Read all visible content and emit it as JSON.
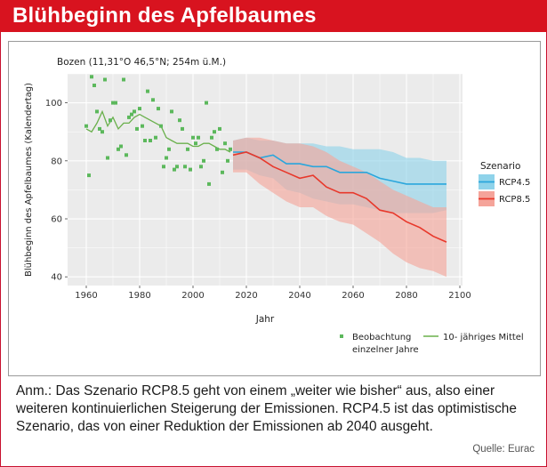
{
  "page": {
    "title": "Blühbeginn des Apfelbaumes",
    "note": "Anm.: Das Szenario RCP8.5 geht von einem „weiter wie bisher“ aus, also einer weiteren kontinuierlichen Steigerung der Emissionen. RCP4.5 ist das optimistische Szenario, das von einer Reduktion der Emissionen ab 2040 ausgeht.",
    "source": "Quelle: Eurac"
  },
  "colors": {
    "observation": "#5cb85c",
    "mean": "#6ab04c",
    "rcp45": "#2aa6dc",
    "rcp45_band": "#8fd3ea",
    "rcp85": "#e8382b",
    "rcp85_band": "#f5a49a",
    "panel": "#ebebeb",
    "brand": "#d8131f"
  },
  "chart_data": {
    "type": "line",
    "title": "Bozen (11,31°O 46,5°N; 254m ü.M.)",
    "xlabel": "Jahr",
    "ylabel": "Blühbeginn des Apfelbaumes (Kalendertag)",
    "xlim": [
      1953,
      2101
    ],
    "ylim": [
      37,
      110
    ],
    "xticks": [
      1960,
      1980,
      2000,
      2020,
      2040,
      2060,
      2080,
      2100
    ],
    "yticks": [
      40,
      60,
      80,
      100
    ],
    "grid": true,
    "legend_position": "right",
    "scenario_legend_title": "Szenario",
    "observations": {
      "name": "Beobachtung einzelner Jahre",
      "x": [
        1960,
        1961,
        1962,
        1963,
        1964,
        1965,
        1966,
        1967,
        1968,
        1969,
        1970,
        1971,
        1972,
        1973,
        1974,
        1975,
        1976,
        1977,
        1978,
        1979,
        1980,
        1981,
        1982,
        1983,
        1984,
        1985,
        1986,
        1987,
        1988,
        1989,
        1990,
        1991,
        1992,
        1993,
        1994,
        1995,
        1996,
        1997,
        1998,
        1999,
        2000,
        2001,
        2002,
        2003,
        2004,
        2005,
        2006,
        2007,
        2008,
        2009,
        2010,
        2011,
        2012,
        2013,
        2014
      ],
      "y": [
        92,
        75,
        109,
        106,
        97,
        91,
        90,
        108,
        81,
        94,
        100,
        100,
        84,
        85,
        108,
        82,
        95,
        96,
        97,
        91,
        98,
        92,
        87,
        104,
        87,
        101,
        88,
        98,
        92,
        78,
        81,
        84,
        97,
        77,
        78,
        94,
        91,
        78,
        84,
        77,
        88,
        86,
        88,
        78,
        80,
        100,
        72,
        88,
        90,
        84,
        91,
        76,
        86,
        80,
        84
      ]
    },
    "mean": {
      "name": "10- jähriges Mittel",
      "x": [
        1960,
        1962,
        1964,
        1966,
        1968,
        1970,
        1972,
        1974,
        1976,
        1978,
        1980,
        1982,
        1984,
        1986,
        1988,
        1990,
        1992,
        1994,
        1996,
        1998,
        2000,
        2002,
        2004,
        2006,
        2008,
        2010,
        2012,
        2014
      ],
      "y": [
        91,
        90,
        93,
        97,
        92,
        95,
        91,
        93,
        93,
        95,
        96,
        95,
        94,
        93,
        92,
        88,
        87,
        86,
        86,
        86,
        85,
        85,
        86,
        86,
        85,
        84,
        84,
        83
      ]
    },
    "series": [
      {
        "name": "RCP4.5",
        "x": [
          2015,
          2020,
          2025,
          2030,
          2035,
          2040,
          2045,
          2050,
          2055,
          2060,
          2065,
          2070,
          2075,
          2080,
          2085,
          2090,
          2095
        ],
        "y": [
          83,
          83,
          81,
          82,
          79,
          79,
          78,
          78,
          76,
          76,
          76,
          74,
          73,
          72,
          72,
          72,
          72
        ],
        "lower": [
          77,
          77,
          75,
          74,
          70,
          69,
          67,
          66,
          65,
          65,
          64,
          63,
          62,
          62,
          62,
          62,
          63
        ],
        "upper": [
          87,
          88,
          87,
          87,
          86,
          86,
          86,
          85,
          85,
          84,
          84,
          84,
          83,
          81,
          81,
          80,
          80
        ]
      },
      {
        "name": "RCP8.5",
        "x": [
          2015,
          2020,
          2025,
          2030,
          2035,
          2040,
          2045,
          2050,
          2055,
          2060,
          2065,
          2070,
          2075,
          2080,
          2085,
          2090,
          2095
        ],
        "y": [
          82,
          83,
          81,
          78,
          76,
          74,
          75,
          71,
          69,
          69,
          67,
          63,
          62,
          59,
          57,
          54,
          52
        ],
        "lower": [
          76,
          76,
          72,
          69,
          66,
          64,
          64,
          61,
          59,
          58,
          55,
          52,
          48,
          45,
          43,
          42,
          40
        ],
        "upper": [
          87,
          88,
          88,
          87,
          86,
          86,
          85,
          83,
          80,
          78,
          76,
          73,
          70,
          68,
          66,
          64,
          64
        ]
      }
    ]
  }
}
